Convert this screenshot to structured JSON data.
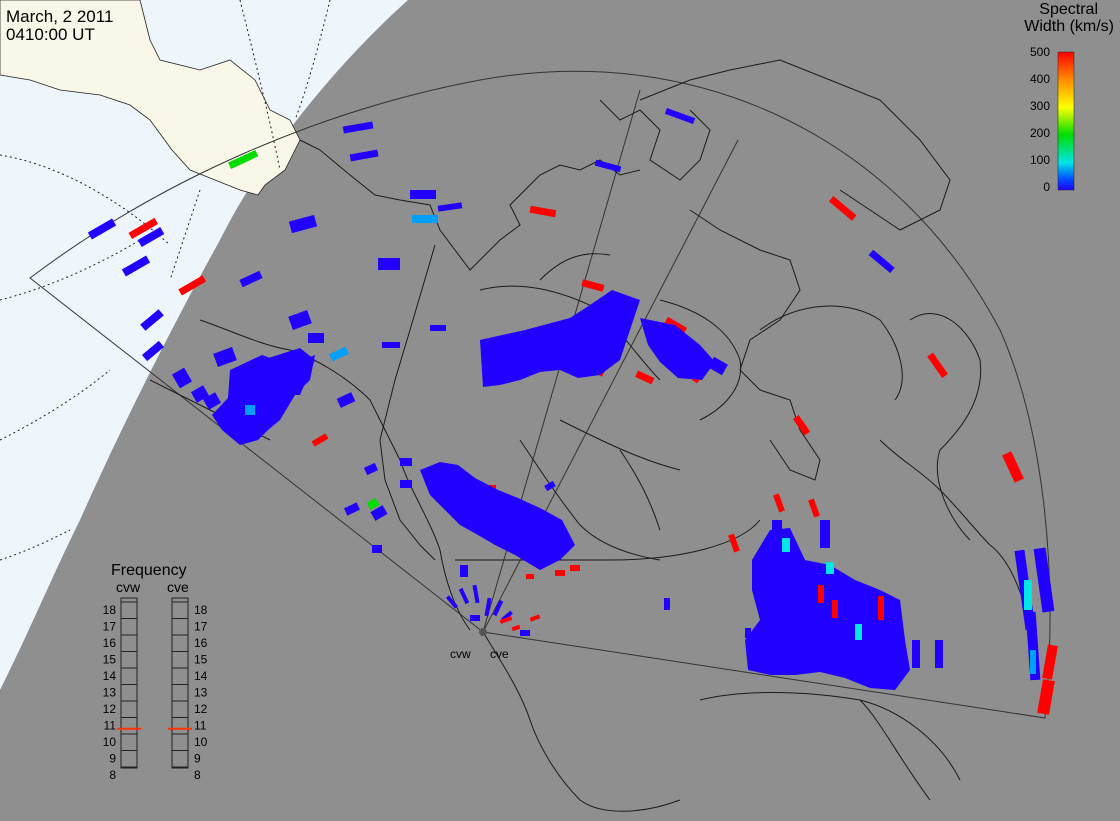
{
  "header": {
    "date": "March, 2 2011",
    "time": "0410:00 UT"
  },
  "colorbar": {
    "title_line1": "Spectral",
    "title_line2": "Width (km/s)",
    "ticks": [
      "500",
      "400",
      "300",
      "200",
      "100",
      "0"
    ],
    "gradient": [
      "#ff0000",
      "#ff8c00",
      "#ffff00",
      "#00dd00",
      "#00e5e5",
      "#0050ff",
      "#2200ff"
    ]
  },
  "frequency": {
    "title": "Frequency",
    "left_label": "cvw",
    "right_label": "cve",
    "scale": [
      "18",
      "17",
      "16",
      "15",
      "14",
      "13",
      "12",
      "11",
      "10",
      "9",
      "8"
    ],
    "cvw_value": 10.8,
    "cve_value": 10.8
  },
  "radars": {
    "west_label": "cvw",
    "east_label": "cve"
  },
  "colors": {
    "ocean_sunlit": "#eef5fb",
    "land_sunlit": "#f8f7e8",
    "night": "#8f8f8f",
    "low_width": "#2200ff",
    "mid_width": "#00e5e5",
    "green_width": "#00dd00",
    "high_width": "#ff0000",
    "marker": "#ff3300"
  }
}
